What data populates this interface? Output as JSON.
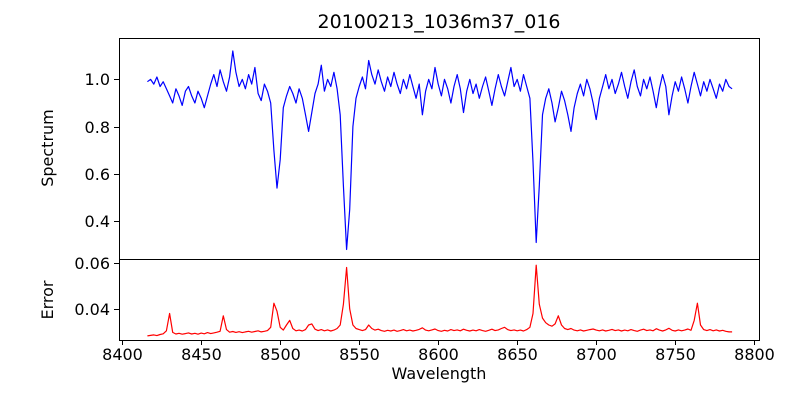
{
  "figure": {
    "background": "#ffffff",
    "spine_color": "#000000",
    "text_color": "#000000"
  },
  "chart_data": [
    {
      "type": "line",
      "name": "spectrum",
      "title": "20100213_1036m37_016",
      "ylabel": "Spectrum",
      "line_color": "#0000ff",
      "legend": "none",
      "grid": false,
      "xlim": [
        8398,
        8803
      ],
      "ylim": [
        0.24,
        1.175
      ],
      "yticks": [
        0.4,
        0.6,
        0.8,
        1.0
      ],
      "ytick_labels": [
        "0.4",
        "0.6",
        "0.8",
        "1.0"
      ],
      "x_start": 8416,
      "x_step": 2,
      "values": [
        0.99,
        1.0,
        0.98,
        1.01,
        0.97,
        0.99,
        0.96,
        0.93,
        0.9,
        0.96,
        0.93,
        0.89,
        0.95,
        0.97,
        0.93,
        0.9,
        0.95,
        0.92,
        0.88,
        0.93,
        0.98,
        1.02,
        0.97,
        1.04,
        0.99,
        0.95,
        1.01,
        1.12,
        1.03,
        0.97,
        1.0,
        0.96,
        1.02,
        0.98,
        1.05,
        0.94,
        0.91,
        0.98,
        0.95,
        0.9,
        0.7,
        0.54,
        0.66,
        0.88,
        0.93,
        0.97,
        0.94,
        0.9,
        0.96,
        0.92,
        0.85,
        0.78,
        0.86,
        0.94,
        0.98,
        1.06,
        0.95,
        1.0,
        0.97,
        1.03,
        0.96,
        0.85,
        0.55,
        0.28,
        0.45,
        0.8,
        0.92,
        0.97,
        1.01,
        0.96,
        1.08,
        1.02,
        0.98,
        1.04,
        0.99,
        0.95,
        1.01,
        0.97,
        1.03,
        0.98,
        0.94,
        1.0,
        0.96,
        1.02,
        0.97,
        0.92,
        0.98,
        0.85,
        0.95,
        1.0,
        0.96,
        1.05,
        0.98,
        0.93,
        1.0,
        0.96,
        0.9,
        0.97,
        1.02,
        0.96,
        0.86,
        0.95,
        1.0,
        0.94,
        0.98,
        0.92,
        0.97,
        1.01,
        0.95,
        0.89,
        0.96,
        1.02,
        0.97,
        0.93,
        0.99,
        1.05,
        0.97,
        1.0,
        0.95,
        1.02,
        0.97,
        0.92,
        0.65,
        0.31,
        0.55,
        0.85,
        0.92,
        0.96,
        0.9,
        0.82,
        0.88,
        0.95,
        0.91,
        0.85,
        0.78,
        0.88,
        0.94,
        0.98,
        0.93,
        1.0,
        0.96,
        0.9,
        0.83,
        0.92,
        0.97,
        1.02,
        0.96,
        1.0,
        0.94,
        0.98,
        1.03,
        0.97,
        0.92,
        0.99,
        1.04,
        0.97,
        0.93,
        1.0,
        0.96,
        1.01,
        0.95,
        0.88,
        0.96,
        1.02,
        0.97,
        0.85,
        0.93,
        0.99,
        0.95,
        1.01,
        0.96,
        0.9,
        0.97,
        1.03,
        0.98,
        0.93,
        0.99,
        0.95,
        1.0,
        0.96,
        0.92,
        0.98,
        0.95,
        1.0,
        0.97,
        0.96
      ]
    },
    {
      "type": "line",
      "name": "error",
      "ylabel": "Error",
      "xlabel": "Wavelength",
      "line_color": "#ff0000",
      "legend": "none",
      "grid": false,
      "xlim": [
        8398,
        8803
      ],
      "ylim": [
        0.0265,
        0.0617
      ],
      "yticks": [
        0.04,
        0.06
      ],
      "ytick_labels": [
        "0.04",
        "0.06"
      ],
      "xticks": [
        8400,
        8450,
        8500,
        8550,
        8600,
        8650,
        8700,
        8750,
        8800
      ],
      "xtick_labels": [
        "8400",
        "8450",
        "8500",
        "8550",
        "8600",
        "8650",
        "8700",
        "8750",
        "8800"
      ],
      "x_start": 8416,
      "x_step": 2,
      "values": [
        0.0283,
        0.0285,
        0.0287,
        0.0284,
        0.0289,
        0.0292,
        0.0305,
        0.038,
        0.0298,
        0.0291,
        0.0294,
        0.029,
        0.0293,
        0.0296,
        0.0291,
        0.0294,
        0.029,
        0.0295,
        0.0292,
        0.0297,
        0.0293,
        0.0296,
        0.0299,
        0.0303,
        0.037,
        0.031,
        0.0299,
        0.0302,
        0.0298,
        0.0301,
        0.0297,
        0.03,
        0.0303,
        0.0299,
        0.0302,
        0.0305,
        0.03,
        0.0303,
        0.0306,
        0.032,
        0.0425,
        0.039,
        0.032,
        0.0308,
        0.033,
        0.035,
        0.0315,
        0.0305,
        0.0308,
        0.0304,
        0.031,
        0.033,
        0.0335,
        0.0312,
        0.0306,
        0.031,
        0.0305,
        0.0309,
        0.0304,
        0.0308,
        0.0315,
        0.033,
        0.042,
        0.058,
        0.04,
        0.033,
        0.0315,
        0.031,
        0.0306,
        0.031,
        0.033,
        0.0315,
        0.0308,
        0.0312,
        0.0306,
        0.0303,
        0.0307,
        0.0304,
        0.0308,
        0.0303,
        0.0306,
        0.031,
        0.0305,
        0.0308,
        0.0304,
        0.0307,
        0.0311,
        0.0318,
        0.0308,
        0.0305,
        0.0309,
        0.0313,
        0.0306,
        0.0303,
        0.0307,
        0.0304,
        0.031,
        0.0306,
        0.0309,
        0.0305,
        0.0312,
        0.0307,
        0.0304,
        0.0308,
        0.0305,
        0.031,
        0.0306,
        0.0303,
        0.0307,
        0.0312,
        0.0306,
        0.0309,
        0.0315,
        0.032,
        0.031,
        0.0306,
        0.0309,
        0.0305,
        0.0308,
        0.0304,
        0.031,
        0.032,
        0.038,
        0.059,
        0.042,
        0.036,
        0.034,
        0.033,
        0.0325,
        0.0335,
        0.037,
        0.033,
        0.0315,
        0.031,
        0.0315,
        0.0308,
        0.0305,
        0.0309,
        0.0304,
        0.0307,
        0.031,
        0.0313,
        0.0308,
        0.0305,
        0.0309,
        0.0304,
        0.0307,
        0.0311,
        0.0306,
        0.0309,
        0.0304,
        0.0308,
        0.0305,
        0.031,
        0.0306,
        0.0303,
        0.0308,
        0.0312,
        0.0306,
        0.0309,
        0.0305,
        0.0314,
        0.0308,
        0.0304,
        0.0309,
        0.0316,
        0.0307,
        0.0304,
        0.0309,
        0.0305,
        0.0308,
        0.0313,
        0.0307,
        0.035,
        0.0425,
        0.033,
        0.031,
        0.0306,
        0.031,
        0.0305,
        0.0309,
        0.0304,
        0.0307,
        0.0303,
        0.03,
        0.03
      ]
    }
  ]
}
